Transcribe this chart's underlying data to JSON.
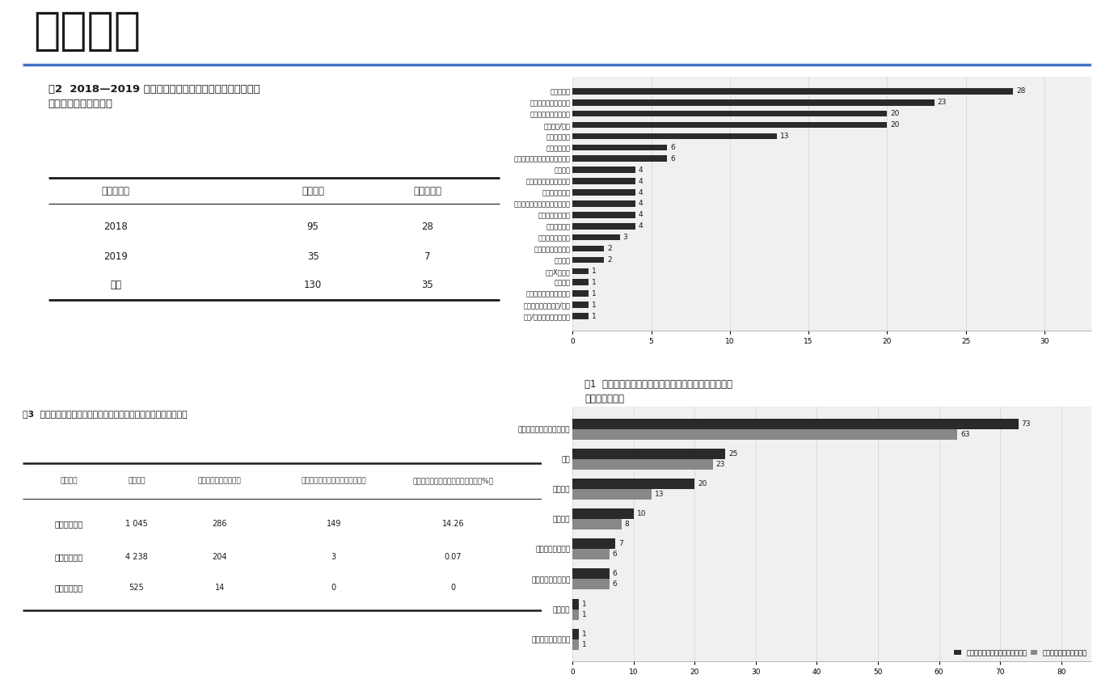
{
  "page_bg": "#ffffff",
  "title_partial": "国抽情况",
  "title_color": "#1a1a1a",
  "divider_color": "#4472c4",
  "table2_title": "表2  2018—2019 年国抽医疗器械标签和说明书不符合标准\n规定情况（单位：批）",
  "table2_headers": [
    "年份（年）",
    "标签问题",
    "说明书问题"
  ],
  "table2_rows": [
    [
      "2018",
      "95",
      "28"
    ],
    [
      "2019",
      "35",
      "7"
    ],
    [
      "合计",
      "130",
      "35"
    ]
  ],
  "chart1_categories": [
    "光治疗设备",
    "生理参数分析测量设备",
    "妇产科测量、监护设备",
    "电疗设备/器具",
    "医用制氧设备",
    "口腔治疗设备",
    "眼科治疗和手术设备、辅助器具",
    "助行器械",
    "眼科测量诊断设备和器具",
    "视光设备和器具",
    "呼吸、麻醉、急救设备辅助装置",
    "光学成像诊断设备",
    "高频治疗设备",
    "医用射线防护设备",
    "激光手术设备及附件",
    "呼吸设备",
    "诊断X射线机",
    "医用病床",
    "血液净化及腹膜透析设备",
    "温热（冷）治疗设备/器具",
    "高频/射频手术设备及附件"
  ],
  "chart1_values": [
    28,
    23,
    20,
    20,
    13,
    6,
    6,
    4,
    4,
    4,
    4,
    4,
    4,
    3,
    2,
    2,
    1,
    1,
    1,
    1,
    1
  ],
  "chart1_bar_color": "#2a2a2a",
  "chart1_caption": "图1  标签和说明书不符合标准规定的医疗器械产品类别分\n布（单位：批）",
  "table3_title": "表3  标签和说明书不符合标准规定的医疗器械分类情况（单位：批）",
  "table3_headers": [
    "器械类别",
    "抽检批次",
    "总不符合标准规定批次",
    "标签和说明书不符合标准规定批次",
    "标签和说明书不符合标准规定比例（%）"
  ],
  "table3_rows": [
    [
      "有源医疗器械",
      "1 045",
      "286",
      "149",
      "14.26"
    ],
    [
      "无源医疗器械",
      "4 238",
      "204",
      "3",
      "0.07"
    ],
    [
      "体外诊断试剂",
      "525",
      "14",
      "0",
      "0"
    ]
  ],
  "chart2_categories": [
    "设备或设备部件的外部标记",
    "标记",
    "外部标记",
    "标识要求",
    "识别、标记和文件",
    "控制器和仪表的标记",
    "警示标记",
    "电池供电设备的标识"
  ],
  "chart2_values_dark": [
    73,
    25,
    20,
    10,
    7,
    6,
    1,
    1
  ],
  "chart2_values_light": [
    63,
    23,
    13,
    8,
    6,
    6,
    1,
    1
  ],
  "chart2_bar_dark_color": "#2a2a2a",
  "chart2_bar_light_color": "#888888",
  "chart2_legend_dark": "不符合标准规定批数（单位：批）",
  "chart2_legend_light": "相关企业数（单位：家）",
  "bottom_line_color": "#4db3b3"
}
